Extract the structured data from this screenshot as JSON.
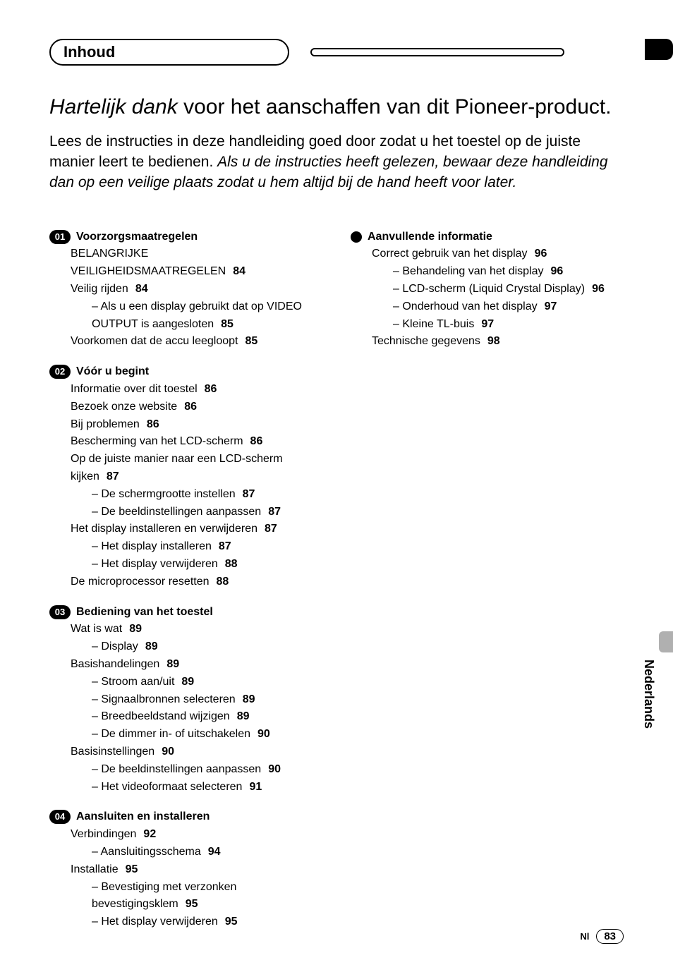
{
  "header": {
    "tab_label": "Inhoud"
  },
  "intro": {
    "title_italic": "Hartelijk dank",
    "title_rest": " voor het aanschaffen van dit Pioneer-product.",
    "body_plain": "Lees de instructies in deze handleiding goed door zodat u het toestel op de juiste manier leert te bedienen. ",
    "body_italic": "Als u de instructies heeft gelezen, bewaar deze handleiding dan op een veilige plaats zodat u hem altijd bij de hand heeft voor later."
  },
  "sections": {
    "s01": {
      "num": "01",
      "title": "Voorzorgsmaatregelen",
      "items": [
        {
          "text": "BELANGRIJKE VEILIGHEIDSMAATREGELEN",
          "page": "84",
          "wrap": true
        },
        {
          "text": "Veilig rijden",
          "page": "84"
        },
        {
          "text": "Als u een display gebruikt dat op VIDEO OUTPUT is aangesloten",
          "page": "85",
          "sub": true,
          "dash": true,
          "wrap": true
        },
        {
          "text": "Voorkomen dat de accu leegloopt",
          "page": "85"
        }
      ]
    },
    "s02": {
      "num": "02",
      "title": "Vóór u begint",
      "items": [
        {
          "text": "Informatie over dit toestel",
          "page": "86"
        },
        {
          "text": "Bezoek onze website",
          "page": "86"
        },
        {
          "text": "Bij problemen",
          "page": "86"
        },
        {
          "text": "Bescherming van het LCD-scherm",
          "page": "86"
        },
        {
          "text": "Op de juiste manier naar een LCD-scherm kijken",
          "page": "87",
          "wrap": true
        },
        {
          "text": "De schermgrootte instellen",
          "page": "87",
          "sub": true,
          "dash": true
        },
        {
          "text": "De beeldinstellingen aanpassen",
          "page": "87",
          "sub": true,
          "dash": true
        },
        {
          "text": "Het display installeren en verwijderen",
          "page": "87"
        },
        {
          "text": "Het display installeren",
          "page": "87",
          "sub": true,
          "dash": true
        },
        {
          "text": "Het display verwijderen",
          "page": "88",
          "sub": true,
          "dash": true
        },
        {
          "text": "De microprocessor resetten",
          "page": "88"
        }
      ]
    },
    "s03": {
      "num": "03",
      "title": "Bediening van het toestel",
      "items": [
        {
          "text": "Wat is wat",
          "page": "89"
        },
        {
          "text": "Display",
          "page": "89",
          "sub": true,
          "dash": true
        },
        {
          "text": "Basishandelingen",
          "page": "89"
        },
        {
          "text": "Stroom aan/uit",
          "page": "89",
          "sub": true,
          "dash": true
        },
        {
          "text": "Signaalbronnen selecteren",
          "page": "89",
          "sub": true,
          "dash": true
        },
        {
          "text": "Breedbeeldstand wijzigen",
          "page": "89",
          "sub": true,
          "dash": true
        },
        {
          "text": "De dimmer in- of uitschakelen",
          "page": "90",
          "sub": true,
          "dash": true
        },
        {
          "text": "Basisinstellingen",
          "page": "90"
        },
        {
          "text": "De beeldinstellingen aanpassen",
          "page": "90",
          "sub": true,
          "dash": true
        },
        {
          "text": "Het videoformaat selecteren",
          "page": "91",
          "sub": true,
          "dash": true
        }
      ]
    },
    "s04": {
      "num": "04",
      "title": "Aansluiten en installeren",
      "items": [
        {
          "text": "Verbindingen",
          "page": "92"
        },
        {
          "text": "Aansluitingsschema",
          "page": "94",
          "sub": true,
          "dash": true
        },
        {
          "text": "Installatie",
          "page": "95"
        },
        {
          "text": "Bevestiging met verzonken bevestigingsklem",
          "page": "95",
          "sub": true,
          "dash": true,
          "wrap": true
        },
        {
          "text": "Het display verwijderen",
          "page": "95",
          "sub": true,
          "dash": true
        }
      ]
    },
    "extra": {
      "title": "Aanvullende informatie",
      "items": [
        {
          "text": "Correct gebruik van het display",
          "page": "96"
        },
        {
          "text": "Behandeling van het display",
          "page": "96",
          "sub": true,
          "dash": true
        },
        {
          "text": "LCD-scherm (Liquid Crystal Display)",
          "page": "96",
          "sub": true,
          "dash": true,
          "wrap": true
        },
        {
          "text": "Onderhoud van het display",
          "page": "97",
          "sub": true,
          "dash": true
        },
        {
          "text": "Kleine TL-buis",
          "page": "97",
          "sub": true,
          "dash": true
        },
        {
          "text": "Technische gegevens",
          "page": "98"
        }
      ]
    }
  },
  "side_label": "Nederlands",
  "footer": {
    "lang": "Nl",
    "page": "83"
  }
}
